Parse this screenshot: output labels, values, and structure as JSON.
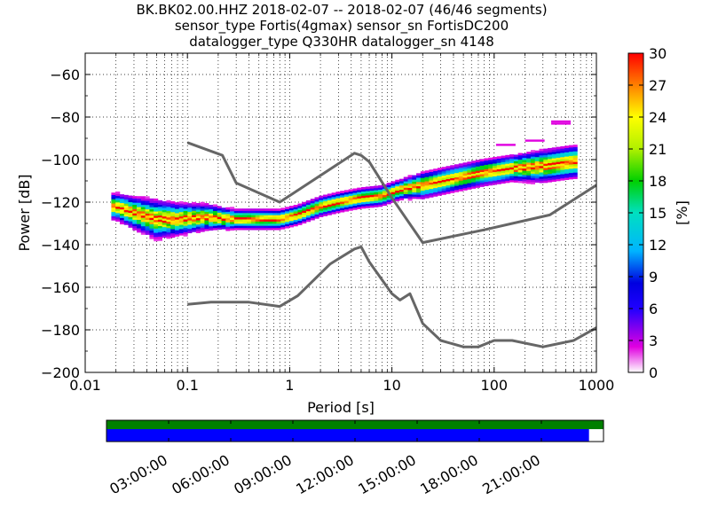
{
  "title_lines": [
    "BK.BK02.00.HHZ   2018-02-07 -- 2018-02-07  (46/46 segments)",
    "sensor_type Fortis(4gmax) sensor_sn FortisDC200",
    "datalogger_type Q330HR datalogger_sn 4148"
  ],
  "chart_data": [
    {
      "type": "heatmap",
      "xlabel": "Period [s]",
      "ylabel": "Power [dB]",
      "xscale": "log",
      "xlim": [
        0.01,
        1000
      ],
      "ylim": [
        -200,
        -50
      ],
      "xticks": [
        0.01,
        0.1,
        1,
        10,
        100,
        1000
      ],
      "xtick_labels": [
        "0.01",
        "0.1",
        "1",
        "10",
        "100",
        "1000"
      ],
      "yticks": [
        -200,
        -180,
        -160,
        -140,
        -120,
        -100,
        -80,
        -60
      ],
      "ytick_labels": [
        "−200",
        "−180",
        "−160",
        "−140",
        "−120",
        "−100",
        "−80",
        "−60"
      ],
      "grid": true,
      "colorbar": {
        "label": "[%]",
        "range": [
          0,
          30
        ],
        "ticks": [
          0,
          3,
          6,
          9,
          12,
          15,
          18,
          21,
          24,
          27,
          30
        ],
        "colormap": "pqlx"
      },
      "ppsd_mode": {
        "periods": [
          0.02,
          0.03,
          0.05,
          0.08,
          0.15,
          0.3,
          0.5,
          0.8,
          1.2,
          2,
          3,
          5,
          8,
          12,
          20,
          40,
          80,
          150,
          300,
          600,
          1000
        ],
        "power": [
          -122,
          -125,
          -128,
          -128,
          -127,
          -128,
          -128,
          -128,
          -126,
          -122,
          -120,
          -118,
          -117,
          -114,
          -112,
          -109,
          -106,
          -104,
          -103,
          -101,
          -101
        ]
      },
      "ppsd_spread_db": [
        4,
        5,
        6,
        5,
        4,
        3,
        3,
        3,
        3,
        3,
        3,
        3,
        3,
        3,
        4,
        4,
        4,
        4,
        5,
        5,
        5
      ],
      "ppsd_outliers": [
        {
          "period": 450,
          "power": -83
        },
        {
          "period": 450,
          "power": -82
        },
        {
          "period": 250,
          "power": -91
        },
        {
          "period": 130,
          "power": -93
        }
      ],
      "reference_curves": [
        {
          "points": [
            [
              0.1,
              -92
            ],
            [
              0.22,
              -98
            ],
            [
              0.3,
              -111
            ],
            [
              0.8,
              -120
            ],
            [
              4.3,
              -97
            ],
            [
              5,
              -98
            ],
            [
              6,
              -101
            ],
            [
              10,
              -118
            ],
            [
              20,
              -139
            ],
            [
              80,
              -133
            ],
            [
              350,
              -126
            ],
            [
              1000,
              -112
            ]
          ]
        },
        {
          "points": [
            [
              0.1,
              -168
            ],
            [
              0.17,
              -167
            ],
            [
              0.4,
              -167
            ],
            [
              0.8,
              -169
            ],
            [
              1.2,
              -164
            ],
            [
              2.5,
              -149
            ],
            [
              4.3,
              -142
            ],
            [
              5,
              -141
            ],
            [
              6,
              -148
            ],
            [
              10,
              -163
            ],
            [
              12,
              -166
            ],
            [
              15,
              -163
            ],
            [
              20,
              -177
            ],
            [
              30,
              -185
            ],
            [
              50,
              -188
            ],
            [
              70,
              -188
            ],
            [
              100,
              -185
            ],
            [
              150,
              -185
            ],
            [
              300,
              -188
            ],
            [
              600,
              -185
            ],
            [
              1000,
              -179
            ]
          ]
        }
      ]
    },
    {
      "type": "timeline",
      "xlim": [
        0,
        24
      ],
      "xtick_labels": [
        "03:00:00",
        "06:00:00",
        "09:00:00",
        "12:00:00",
        "15:00:00",
        "18:00:00",
        "21:00:00"
      ],
      "xticks_hours": [
        3,
        6,
        9,
        12,
        15,
        18,
        21
      ],
      "data_coverage": {
        "start": 0,
        "end": 24,
        "color": "#008000"
      },
      "psd_coverage": {
        "start": 0,
        "end": 23.3,
        "color": "#0000ff"
      }
    }
  ]
}
